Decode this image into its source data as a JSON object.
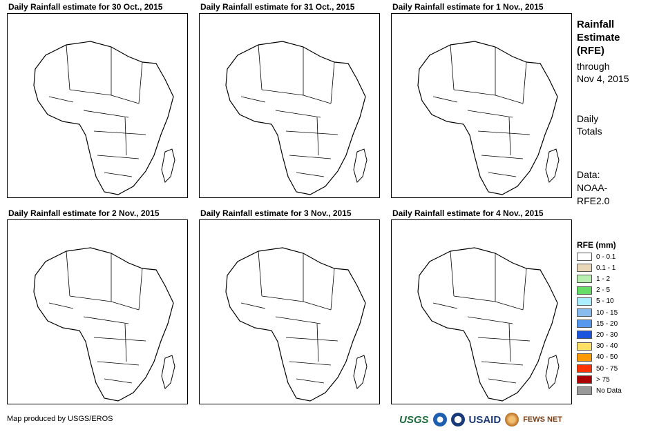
{
  "panels": [
    {
      "title": "Daily Rainfall estimate for 30 Oct., 2015"
    },
    {
      "title": "Daily Rainfall estimate for 31 Oct., 2015"
    },
    {
      "title": "Daily Rainfall estimate for 1 Nov., 2015"
    },
    {
      "title": "Daily Rainfall estimate for 2 Nov., 2015"
    },
    {
      "title": "Daily Rainfall estimate for 3 Nov., 2015"
    },
    {
      "title": "Daily Rainfall estimate for 4 Nov., 2015"
    }
  ],
  "side": {
    "title_l1": "Rainfall",
    "title_l2": "Estimate",
    "title_l3": "(RFE)",
    "through_l1": "through",
    "through_l2": "Nov 4, 2015",
    "totals_l1": "Daily",
    "totals_l2": "Totals",
    "data_l1": "Data:",
    "data_l2": "NOAA-",
    "data_l3": "RFE2.0"
  },
  "legend": {
    "title": "RFE (mm)",
    "items": [
      {
        "label": "0 - 0.1",
        "color": "#ffffff"
      },
      {
        "label": "0.1 - 1",
        "color": "#e8d8b8"
      },
      {
        "label": "1 - 2",
        "color": "#b8f0b0"
      },
      {
        "label": "2 - 5",
        "color": "#66dd66"
      },
      {
        "label": "5 - 10",
        "color": "#aaeeff"
      },
      {
        "label": "10 - 15",
        "color": "#88bbee"
      },
      {
        "label": "15 - 20",
        "color": "#5599ee"
      },
      {
        "label": "20 - 30",
        "color": "#1a55dd"
      },
      {
        "label": "30 - 40",
        "color": "#ffe066"
      },
      {
        "label": "40 - 50",
        "color": "#ff9900"
      },
      {
        "label": "50 - 75",
        "color": "#ff3300"
      },
      {
        "label": "> 75",
        "color": "#aa0000"
      },
      {
        "label": "No Data",
        "color": "#999999"
      }
    ]
  },
  "credit": "Map produced by USGS/EROS",
  "logos": {
    "usgs": "USGS",
    "usaid": "USAID",
    "fews": "FEWS NET"
  }
}
